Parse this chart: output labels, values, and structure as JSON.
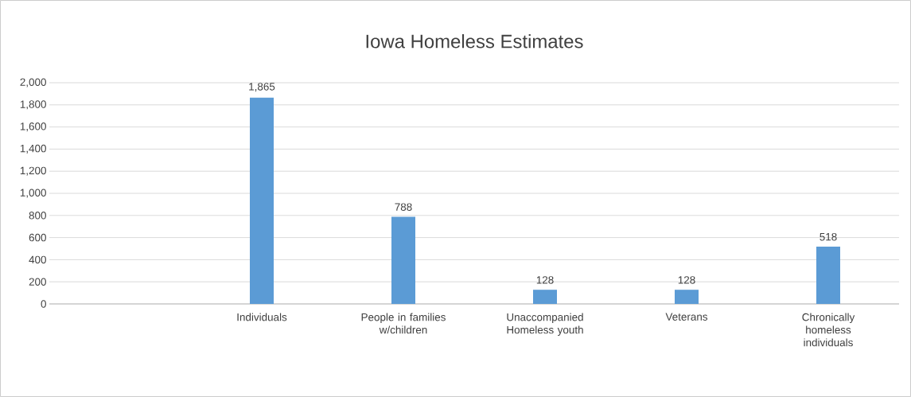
{
  "chart_data": {
    "type": "bar",
    "title": "Iowa Homeless Estimates",
    "categories": [
      null,
      "Individuals",
      "People in families w/children",
      "Unaccompanied Homeless youth",
      "Veterans",
      "Chronically homeless individuals"
    ],
    "values": [
      null,
      1865,
      788,
      128,
      128,
      518
    ],
    "value_labels": [
      null,
      "1,865",
      "788",
      "128",
      "128",
      "518"
    ],
    "color": "#5b9bd5",
    "ylim": [
      0,
      2000
    ],
    "yticks": [
      0,
      {
        "value": 200,
        "label": "200"
      },
      {
        "value": 400,
        "label": "400"
      },
      {
        "value": 600,
        "label": "600"
      },
      {
        "value": 800,
        "label": "800"
      },
      {
        "value": 1000,
        "label": "1,000"
      },
      {
        "value": 1200,
        "label": "1,200"
      },
      {
        "value": 1400,
        "label": "1,400"
      },
      {
        "value": 1600,
        "label": "1,600"
      },
      {
        "value": 1800,
        "label": "1,800"
      },
      {
        "value": 2000,
        "label": "2,000"
      }
    ],
    "grid": "y"
  }
}
